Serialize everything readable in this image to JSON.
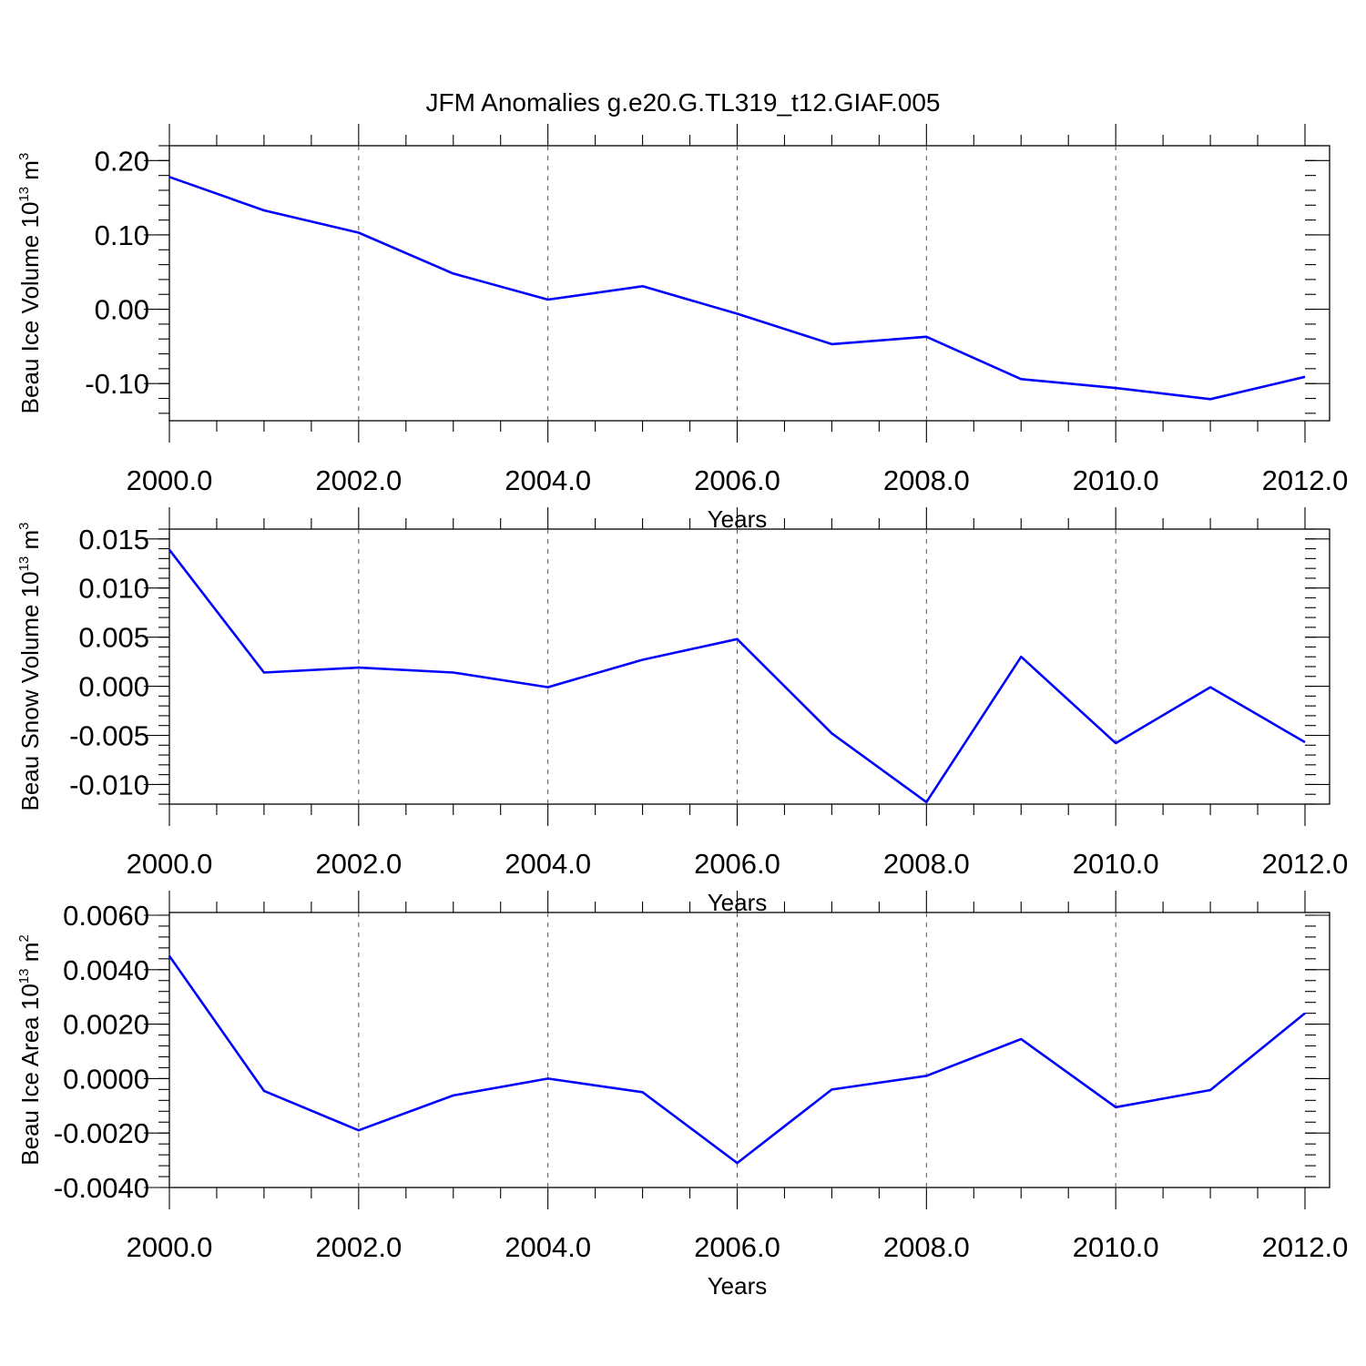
{
  "title": "JFM Anomalies g.e20.G.TL319_t12.GIAF.005",
  "chart_data": [
    {
      "type": "line",
      "ylabel": {
        "main": "Beau Ice Volume 10",
        "sup1": "13",
        "mid": " m",
        "sup2": "3"
      },
      "xlabel": "Years",
      "xlim": [
        2000,
        2012
      ],
      "ylim": [
        -0.15,
        0.22
      ],
      "xticks": [
        2000,
        2002,
        2004,
        2006,
        2008,
        2010,
        2012
      ],
      "xtick_labels": [
        "2000.0",
        "2002.0",
        "2004.0",
        "2006.0",
        "2008.0",
        "2010.0",
        "2012.0"
      ],
      "yticks": [
        0.2,
        0.1,
        0.0,
        -0.1
      ],
      "ytick_labels": [
        "0.20",
        "0.10",
        "0.00",
        "-0.10"
      ],
      "yminor_step": 0.02,
      "x": [
        2000,
        2001,
        2002,
        2003,
        2004,
        2005,
        2006,
        2007,
        2008,
        2009,
        2010,
        2011,
        2012
      ],
      "values": [
        0.178,
        0.133,
        0.103,
        0.048,
        0.013,
        0.031,
        -0.006,
        -0.047,
        -0.037,
        -0.094,
        -0.106,
        -0.121,
        -0.091
      ],
      "color": "#0000ff",
      "grid": "vertical dashed at major x ticks"
    },
    {
      "type": "line",
      "ylabel": {
        "main": "Beau Snow Volume 10",
        "sup1": "13",
        "mid": " m",
        "sup2": "3"
      },
      "xlabel": "Years",
      "xlim": [
        2000,
        2012
      ],
      "ylim": [
        -0.012,
        0.016
      ],
      "xticks": [
        2000,
        2002,
        2004,
        2006,
        2008,
        2010,
        2012
      ],
      "xtick_labels": [
        "2000.0",
        "2002.0",
        "2004.0",
        "2006.0",
        "2008.0",
        "2010.0",
        "2012.0"
      ],
      "yticks": [
        0.015,
        0.01,
        0.005,
        0.0,
        -0.005,
        -0.01
      ],
      "ytick_labels": [
        "0.015",
        "0.010",
        "0.005",
        "0.000",
        "-0.005",
        "-0.010"
      ],
      "yminor_step": 0.001,
      "x": [
        2000,
        2001,
        2002,
        2003,
        2004,
        2005,
        2006,
        2007,
        2008,
        2009,
        2010,
        2011,
        2012
      ],
      "values": [
        0.0139,
        0.0014,
        0.0019,
        0.0014,
        -0.0001,
        0.0027,
        0.0048,
        -0.0048,
        -0.0118,
        0.003,
        -0.0058,
        -0.0001,
        -0.0057
      ],
      "color": "#0000ff",
      "grid": "vertical dashed at major x ticks"
    },
    {
      "type": "line",
      "ylabel": {
        "main": "Beau Ice Area 10",
        "sup1": "13",
        "mid": " m",
        "sup2": "2"
      },
      "xlabel": "Years",
      "xlim": [
        2000,
        2012
      ],
      "ylim": [
        -0.004,
        0.0061
      ],
      "xticks": [
        2000,
        2002,
        2004,
        2006,
        2008,
        2010,
        2012
      ],
      "xtick_labels": [
        "2000.0",
        "2002.0",
        "2004.0",
        "2006.0",
        "2008.0",
        "2010.0",
        "2012.0"
      ],
      "yticks": [
        0.006,
        0.004,
        0.002,
        0.0,
        -0.002,
        -0.004
      ],
      "ytick_labels": [
        "0.0060",
        "0.0040",
        "0.0020",
        "0.0000",
        "-0.0020",
        "-0.0040"
      ],
      "yminor_step": 0.0004,
      "x": [
        2000,
        2001,
        2002,
        2003,
        2004,
        2005,
        2006,
        2007,
        2008,
        2009,
        2010,
        2011,
        2012
      ],
      "values": [
        0.0045,
        -0.00045,
        -0.0019,
        -0.00062,
        0.0,
        -0.0005,
        -0.0031,
        -0.0004,
        0.0001,
        0.00145,
        -0.00105,
        -0.00042,
        0.0024
      ],
      "color": "#0000ff",
      "grid": "vertical dashed at major x ticks"
    }
  ]
}
